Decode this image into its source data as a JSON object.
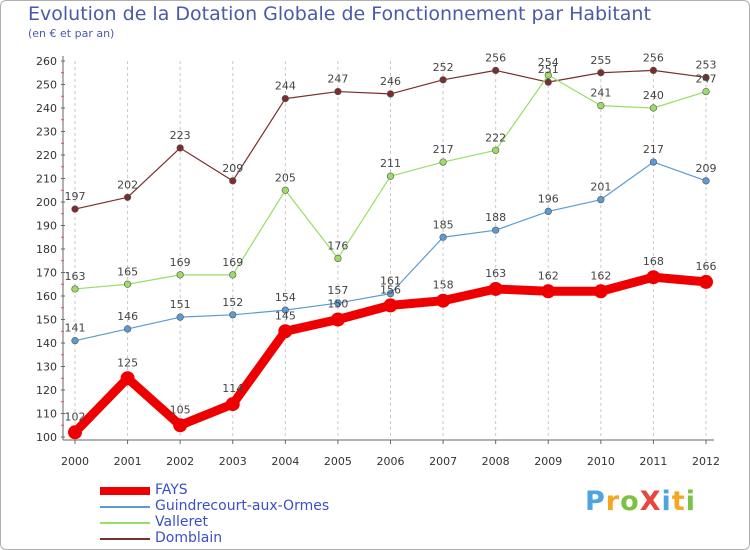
{
  "chart_data": {
    "type": "line",
    "title": "Evolution de la Dotation Globale de Fonctionnement par Habitant",
    "subtitle": "(en € et par an)",
    "xlabel": "",
    "ylabel": "",
    "x": [
      "2000",
      "2001",
      "2002",
      "2003",
      "2004",
      "2005",
      "2006",
      "2007",
      "2008",
      "2009",
      "2010",
      "2011",
      "2012"
    ],
    "ylim": [
      100,
      260
    ],
    "yticks": [
      100,
      110,
      120,
      130,
      140,
      150,
      160,
      170,
      180,
      190,
      200,
      210,
      220,
      230,
      240,
      250,
      260
    ],
    "grid": "vertical dashed",
    "legend_position": "bottom-left",
    "series": [
      {
        "name": "FAYS",
        "color": "#ee0000",
        "values": [
          102,
          125,
          105,
          114,
          145,
          150,
          156,
          158,
          163,
          162,
          162,
          168,
          166
        ]
      },
      {
        "name": "Guindrecourt-aux-Ormes",
        "color": "#5b9bd5",
        "values": [
          141,
          146,
          151,
          152,
          154,
          157,
          161,
          185,
          188,
          196,
          201,
          217,
          209
        ]
      },
      {
        "name": "Valleret",
        "color": "#99dd66",
        "values": [
          163,
          165,
          169,
          169,
          205,
          176,
          211,
          217,
          222,
          254,
          241,
          240,
          247
        ]
      },
      {
        "name": "Domblain",
        "color": "#7a2e2e",
        "values": [
          197,
          202,
          223,
          209,
          244,
          247,
          246,
          252,
          256,
          251,
          255,
          256,
          253
        ]
      }
    ]
  },
  "logo": {
    "text": "ProXiti",
    "letters": [
      "P",
      "r",
      "o",
      "X",
      "i",
      "t",
      "i"
    ],
    "colors": [
      "#4fa3e0",
      "#f5a623",
      "#7cc142",
      "#e8453c",
      "#4fa3e0",
      "#f5a623",
      "#7cc142"
    ]
  }
}
